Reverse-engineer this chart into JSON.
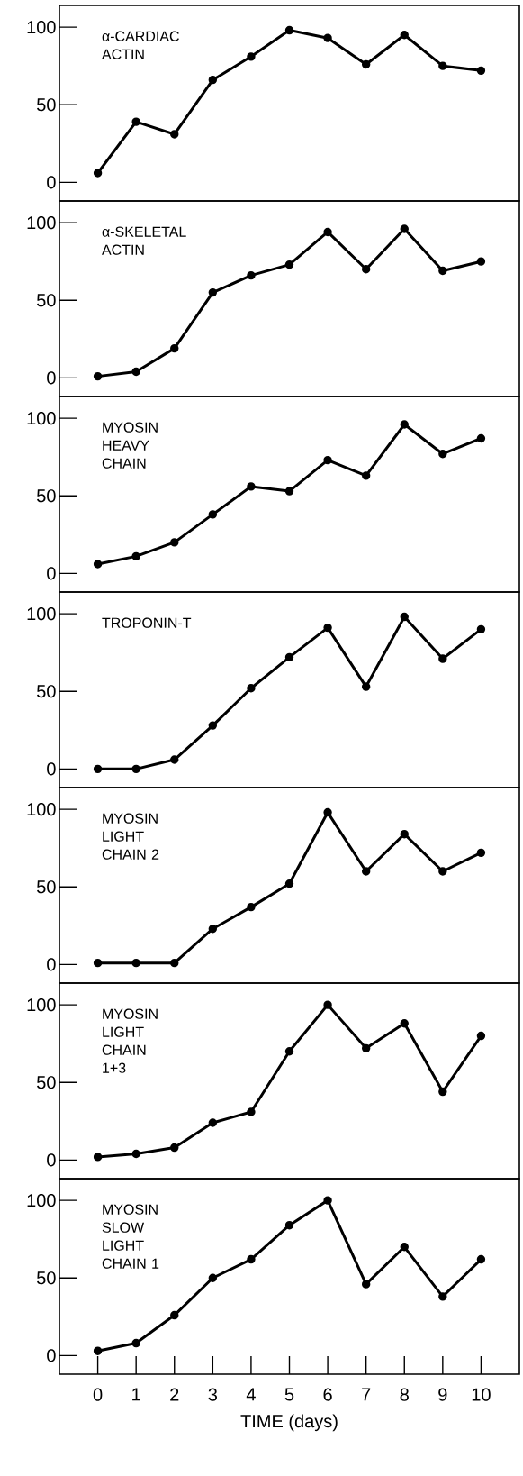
{
  "chart_data": [
    {
      "type": "line",
      "title": "α-CARDIAC ACTIN",
      "x": [
        0,
        1,
        2,
        3,
        4,
        5,
        6,
        7,
        8,
        9,
        10
      ],
      "color": "#000000",
      "values": [
        6,
        39,
        31,
        66,
        81,
        98,
        93,
        76,
        95,
        75,
        72
      ],
      "xlim": [
        -1,
        11
      ],
      "ylim": [
        -12,
        114
      ],
      "yticks": [
        0,
        50,
        100
      ],
      "marker": "circle",
      "line_style": "solid",
      "tick_labels": "y"
    },
    {
      "type": "line",
      "title": "α-SKELETAL ACTIN",
      "x": [
        0,
        1,
        2,
        3,
        4,
        5,
        6,
        7,
        8,
        9,
        10
      ],
      "color": "#000000",
      "values": [
        1,
        4,
        19,
        55,
        66,
        73,
        94,
        70,
        96,
        69,
        75
      ],
      "xlim": [
        -1,
        11
      ],
      "ylim": [
        -12,
        114
      ],
      "yticks": [
        0,
        50,
        100
      ],
      "marker": "circle",
      "line_style": "solid",
      "tick_labels": "y"
    },
    {
      "type": "line",
      "title": "MYOSIN HEAVY CHAIN",
      "x": [
        0,
        1,
        2,
        3,
        4,
        5,
        6,
        7,
        8,
        9,
        10
      ],
      "color": "#000000",
      "values": [
        6,
        11,
        20,
        38,
        56,
        53,
        73,
        63,
        96,
        77,
        87
      ],
      "xlim": [
        -1,
        11
      ],
      "ylim": [
        -12,
        114
      ],
      "yticks": [
        0,
        50,
        100
      ],
      "marker": "circle",
      "line_style": "solid",
      "tick_labels": "y"
    },
    {
      "type": "line",
      "title": "TROPONIN-T",
      "x": [
        0,
        1,
        2,
        3,
        4,
        5,
        6,
        7,
        8,
        9,
        10
      ],
      "color": "#000000",
      "values": [
        0,
        0,
        6,
        28,
        52,
        72,
        91,
        53,
        98,
        71,
        90
      ],
      "xlim": [
        -1,
        11
      ],
      "ylim": [
        -12,
        114
      ],
      "yticks": [
        0,
        50,
        100
      ],
      "marker": "circle",
      "line_style": "solid",
      "tick_labels": "y"
    },
    {
      "type": "line",
      "title": "MYOSIN LIGHT CHAIN 2",
      "x": [
        0,
        1,
        2,
        3,
        4,
        5,
        6,
        7,
        8,
        9,
        10
      ],
      "color": "#000000",
      "values": [
        1,
        1,
        1,
        23,
        37,
        52,
        98,
        60,
        84,
        60,
        72
      ],
      "xlim": [
        -1,
        11
      ],
      "ylim": [
        -12,
        114
      ],
      "yticks": [
        0,
        50,
        100
      ],
      "marker": "circle",
      "line_style": "solid",
      "tick_labels": "y"
    },
    {
      "type": "line",
      "title": "MYOSIN LIGHT CHAIN 1+3",
      "x": [
        0,
        1,
        2,
        3,
        4,
        5,
        6,
        7,
        8,
        9,
        10
      ],
      "color": "#000000",
      "values": [
        2,
        4,
        8,
        24,
        31,
        70,
        100,
        72,
        88,
        44,
        80
      ],
      "xlim": [
        -1,
        11
      ],
      "ylim": [
        -12,
        114
      ],
      "yticks": [
        0,
        50,
        100
      ],
      "marker": "circle",
      "line_style": "solid",
      "tick_labels": "y"
    },
    {
      "type": "line",
      "title": "MYOSIN SLOW LIGHT CHAIN 1",
      "xlabel": "TIME (days)",
      "x": [
        0,
        1,
        2,
        3,
        4,
        5,
        6,
        7,
        8,
        9,
        10
      ],
      "color": "#000000",
      "values": [
        3,
        8,
        26,
        50,
        62,
        84,
        100,
        46,
        70,
        38,
        62
      ],
      "xlim": [
        -1,
        11
      ],
      "ylim": [
        -12,
        114
      ],
      "xticks": [
        0,
        1,
        2,
        3,
        4,
        5,
        6,
        7,
        8,
        9,
        10
      ],
      "yticks": [
        0,
        50,
        100
      ],
      "marker": "circle",
      "line_style": "solid"
    }
  ]
}
